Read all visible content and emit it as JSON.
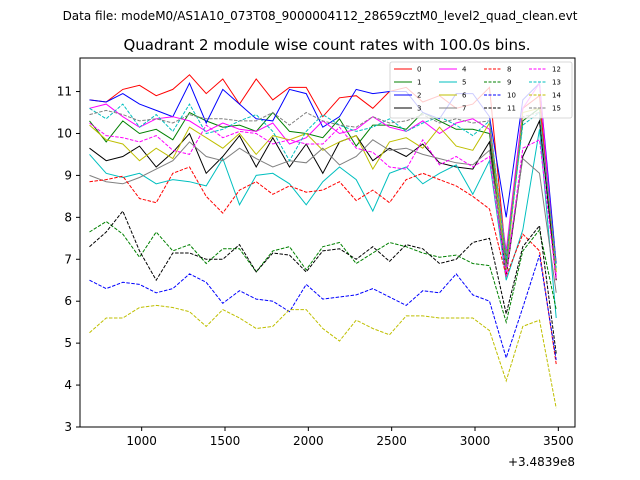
{
  "suptitle": "Data file: modeM0/AS1A10_073T08_9000004112_28659cztM0_level2_quad_clean.evt",
  "chart_data": {
    "type": "line",
    "title": "Quadrant 2 module wise count rates with 100.0s bins.",
    "xlabel": "",
    "ylabel": "",
    "offset_label": "+3.4839e8",
    "xlim": [
      630,
      3600
    ],
    "ylim": [
      3,
      11.8
    ],
    "xticks": [
      1000,
      1500,
      2000,
      2500,
      3000,
      3500
    ],
    "yticks": [
      3,
      4,
      5,
      6,
      7,
      8,
      9,
      10,
      11
    ],
    "x": [
      687,
      787,
      887,
      987,
      1087,
      1187,
      1287,
      1387,
      1487,
      1587,
      1687,
      1787,
      1887,
      1987,
      2087,
      2187,
      2287,
      2387,
      2487,
      2587,
      2687,
      2787,
      2887,
      2987,
      3087,
      3187,
      3287,
      3387,
      3487
    ],
    "legend_position": "upper right",
    "series": [
      {
        "name": "0",
        "color": "#ff0000",
        "dash": "solid",
        "values": [
          10.8,
          10.75,
          11.05,
          11.15,
          10.9,
          11.05,
          11.4,
          10.95,
          11.3,
          10.7,
          11.3,
          10.8,
          11.1,
          11.1,
          10.4,
          10.85,
          10.9,
          10.6,
          11.0,
          11.1,
          10.75,
          10.9,
          10.6,
          10.7,
          11.1,
          7.0,
          10.6,
          10.9,
          6.5
        ]
      },
      {
        "name": "1",
        "color": "#008000",
        "dash": "solid",
        "values": [
          10.3,
          9.8,
          10.3,
          10.0,
          10.1,
          9.85,
          10.5,
          10.3,
          10.15,
          10.2,
          10.05,
          10.5,
          10.05,
          10.0,
          9.9,
          10.35,
          9.7,
          10.2,
          10.2,
          10.1,
          10.5,
          10.3,
          10.1,
          10.1,
          10.0,
          6.9,
          10.3,
          10.6,
          6.7
        ]
      },
      {
        "name": "2",
        "color": "#0000ff",
        "dash": "solid",
        "values": [
          10.8,
          10.75,
          10.95,
          10.7,
          10.55,
          10.4,
          11.2,
          10.25,
          11.05,
          10.7,
          10.35,
          10.3,
          11.05,
          10.95,
          10.15,
          10.4,
          11.05,
          10.95,
          11.0,
          11.0,
          10.5,
          10.35,
          10.95,
          10.95,
          10.4,
          8.0,
          10.8,
          11.2,
          6.9
        ]
      },
      {
        "name": "3",
        "color": "#000000",
        "dash": "solid",
        "values": [
          9.65,
          9.35,
          9.45,
          9.7,
          9.2,
          9.55,
          10.0,
          9.05,
          9.45,
          9.95,
          9.2,
          9.9,
          9.2,
          9.75,
          9.05,
          9.8,
          9.95,
          9.35,
          9.65,
          9.45,
          9.75,
          9.3,
          9.2,
          9.15,
          9.8,
          6.6,
          9.45,
          10.3,
          6.5
        ]
      },
      {
        "name": "4",
        "color": "#ff00ff",
        "dash": "solid",
        "values": [
          10.6,
          10.7,
          10.4,
          10.15,
          10.35,
          10.4,
          10.3,
          10.05,
          10.25,
          10.1,
          10.05,
          10.25,
          9.75,
          9.9,
          10.3,
          10.0,
          10.1,
          10.4,
          10.15,
          10.05,
          10.3,
          10.0,
          10.25,
          10.35,
          10.1,
          7.2,
          10.6,
          11.2,
          6.6
        ]
      },
      {
        "name": "5",
        "color": "#00bfbf",
        "dash": "solid",
        "values": [
          9.5,
          9.05,
          8.95,
          9.05,
          8.8,
          8.9,
          8.85,
          8.75,
          9.4,
          8.3,
          9.0,
          9.05,
          8.8,
          8.3,
          8.85,
          9.2,
          8.9,
          8.15,
          9.05,
          9.2,
          8.8,
          9.05,
          9.25,
          8.55,
          9.35,
          6.5,
          7.7,
          10.1,
          5.6
        ]
      },
      {
        "name": "6",
        "color": "#bfbf00",
        "dash": "solid",
        "values": [
          10.2,
          9.85,
          9.75,
          9.35,
          9.65,
          9.4,
          10.15,
          9.9,
          9.65,
          10.0,
          9.5,
          9.95,
          9.85,
          10.0,
          9.6,
          9.8,
          9.95,
          9.15,
          9.8,
          9.9,
          9.65,
          10.15,
          9.7,
          9.6,
          10.25,
          6.75,
          10.5,
          10.6,
          6.7
        ]
      },
      {
        "name": "7",
        "color": "#808080",
        "dash": "solid",
        "values": [
          9.0,
          8.85,
          8.8,
          8.95,
          9.15,
          9.35,
          9.8,
          9.45,
          9.35,
          9.65,
          9.4,
          9.2,
          9.35,
          9.3,
          9.65,
          9.25,
          9.45,
          9.85,
          9.6,
          9.65,
          9.5,
          9.4,
          9.3,
          9.25,
          9.6,
          6.8,
          9.4,
          9.05,
          6.2
        ]
      },
      {
        "name": "8",
        "color": "#ff0000",
        "dash": "dashed",
        "values": [
          8.85,
          8.9,
          8.98,
          8.45,
          8.35,
          9.05,
          9.2,
          8.5,
          8.1,
          8.65,
          8.85,
          8.55,
          8.75,
          8.6,
          8.65,
          8.85,
          8.4,
          8.65,
          8.35,
          8.9,
          9.05,
          8.9,
          8.75,
          8.5,
          8.2,
          6.6,
          7.6,
          7.2,
          4.5
        ]
      },
      {
        "name": "9",
        "color": "#008000",
        "dash": "dashed",
        "values": [
          7.65,
          7.9,
          7.6,
          7.05,
          7.65,
          7.2,
          7.35,
          6.9,
          7.25,
          7.25,
          6.7,
          7.2,
          7.3,
          6.75,
          7.3,
          7.4,
          6.9,
          7.15,
          7.4,
          7.3,
          7.15,
          7.05,
          7.1,
          6.9,
          6.85,
          5.5,
          7.2,
          7.7,
          5.8
        ]
      },
      {
        "name": "10",
        "color": "#0000ff",
        "dash": "dashed",
        "values": [
          6.5,
          6.3,
          6.45,
          6.4,
          6.2,
          6.3,
          6.65,
          6.45,
          5.95,
          6.25,
          6.05,
          6.0,
          5.75,
          6.4,
          6.05,
          6.1,
          6.15,
          6.3,
          6.1,
          5.9,
          6.25,
          6.2,
          6.65,
          6.15,
          6.0,
          4.65,
          5.85,
          7.1,
          4.6
        ]
      },
      {
        "name": "11",
        "color": "#000000",
        "dash": "dashed",
        "values": [
          7.3,
          7.65,
          8.15,
          7.2,
          6.5,
          7.15,
          7.15,
          7.0,
          7.0,
          7.35,
          6.7,
          7.15,
          7.1,
          6.7,
          7.2,
          7.25,
          7.0,
          7.3,
          6.95,
          7.35,
          7.25,
          6.9,
          7.0,
          7.4,
          7.5,
          5.7,
          7.3,
          7.8,
          4.75
        ]
      },
      {
        "name": "12",
        "color": "#ff00ff",
        "dash": "dashed",
        "values": [
          10.25,
          9.95,
          9.9,
          9.8,
          9.95,
          9.6,
          9.5,
          10.2,
          9.9,
          10.05,
          10.0,
          9.75,
          9.85,
          9.75,
          9.75,
          10.15,
          9.65,
          9.55,
          9.2,
          9.15,
          9.85,
          9.25,
          9.45,
          9.2,
          9.45,
          6.6,
          9.65,
          9.85,
          6.5
        ]
      },
      {
        "name": "13",
        "color": "#00bfbf",
        "dash": "dashed",
        "values": [
          10.6,
          10.35,
          10.7,
          10.15,
          10.45,
          10.05,
          10.7,
          10.0,
          10.1,
          10.3,
          10.45,
          10.05,
          9.35,
          10.05,
          10.45,
          10.2,
          10.05,
          10.15,
          10.35,
          10.05,
          10.25,
          10.4,
          10.2,
          9.95,
          10.3,
          7.0,
          10.2,
          10.5,
          6.8
        ]
      },
      {
        "name": "14",
        "color": "#bfbf00",
        "dash": "dashed",
        "values": [
          5.25,
          5.6,
          5.6,
          5.85,
          5.9,
          5.85,
          5.75,
          5.4,
          5.8,
          5.6,
          5.35,
          5.4,
          5.8,
          5.8,
          5.35,
          5.05,
          5.55,
          5.35,
          5.2,
          5.65,
          5.65,
          5.6,
          5.6,
          5.6,
          5.3,
          4.1,
          5.4,
          5.55,
          3.45
        ]
      },
      {
        "name": "15",
        "color": "#808080",
        "dash": "dashed",
        "values": [
          10.45,
          10.55,
          10.45,
          10.3,
          10.35,
          10.25,
          10.45,
          10.35,
          10.35,
          10.3,
          10.3,
          10.5,
          10.2,
          10.5,
          10.3,
          10.2,
          10.15,
          10.4,
          10.25,
          10.3,
          10.45,
          10.25,
          10.35,
          10.25,
          10.3,
          7.1,
          10.4,
          10.5,
          6.9
        ]
      }
    ]
  }
}
